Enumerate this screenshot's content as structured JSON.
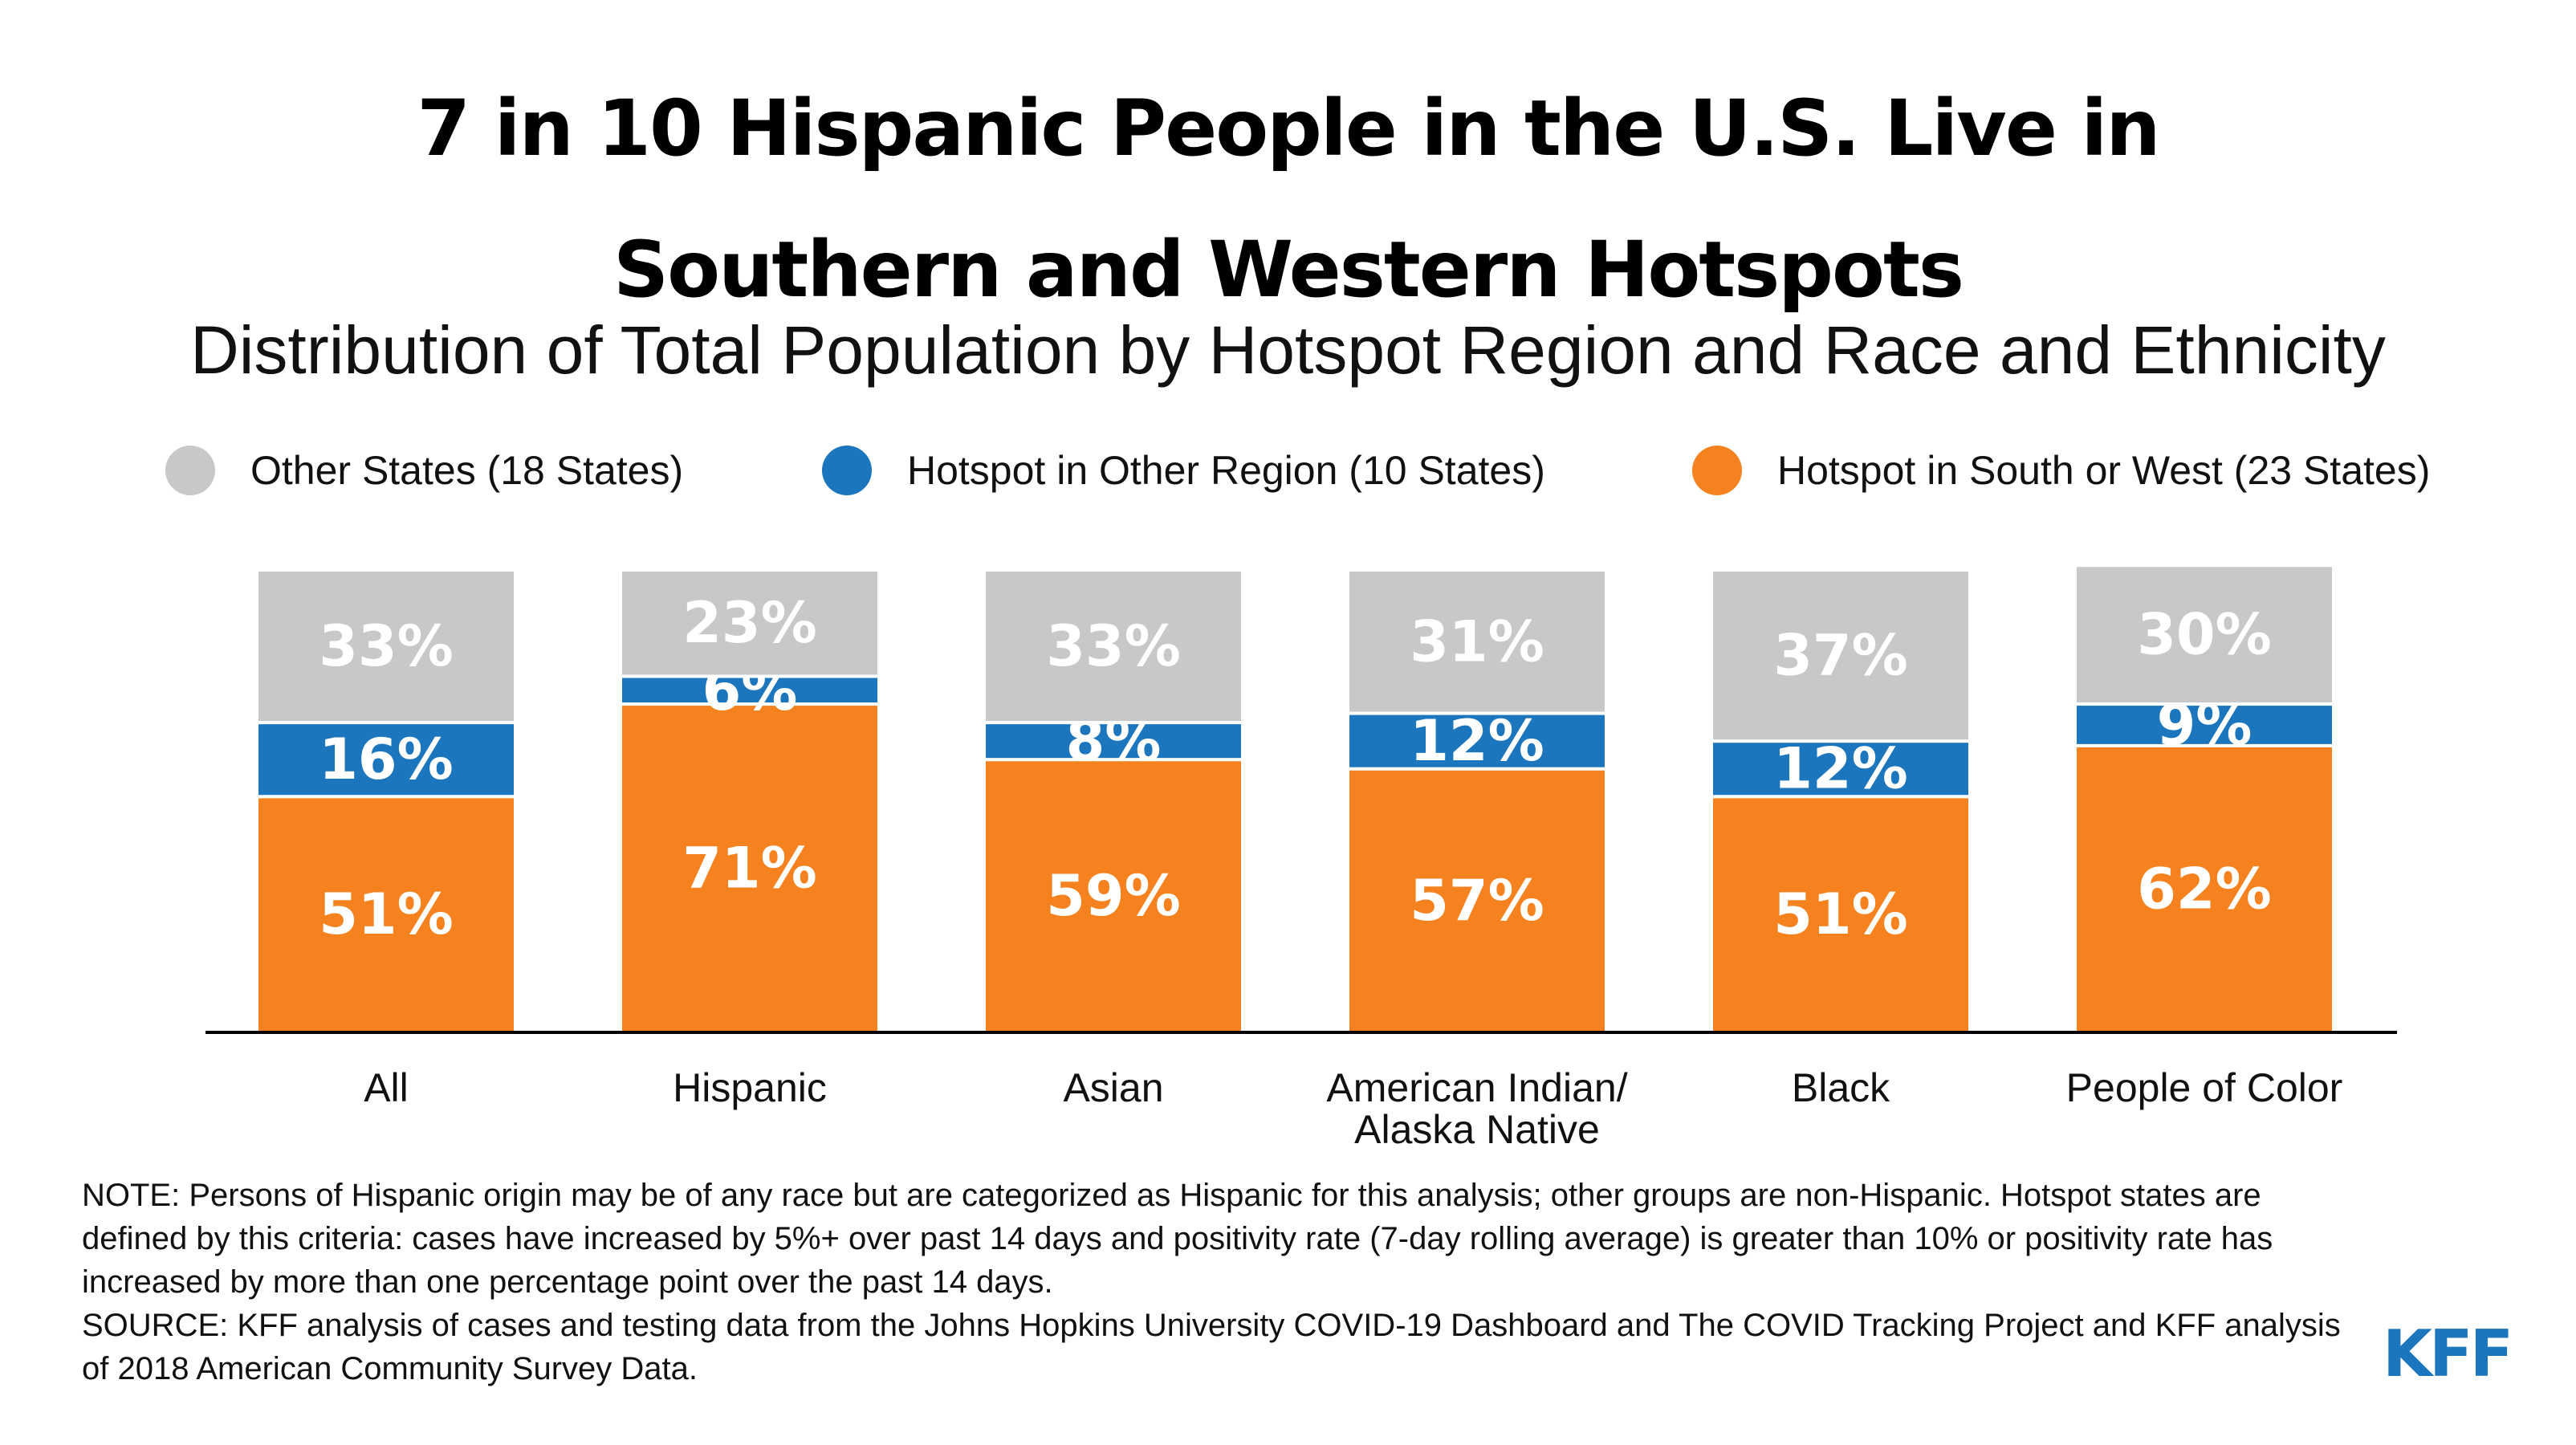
{
  "header": {
    "title_line1": "7 in 10 Hispanic People in the U.S. Live in",
    "title_line2": "Southern and Western Hotspots",
    "subtitle": "Distribution of Total Population by Hotspot Region and Race and Ethnicity"
  },
  "legend": [
    {
      "label": "Other States (18 States)",
      "color": "#c8c8c8"
    },
    {
      "label": "Hotspot in Other Region (10 States)",
      "color": "#1b76be"
    },
    {
      "label": "Hotspot in South or West (23 States)",
      "color": "#f5821f"
    }
  ],
  "chart_data": {
    "type": "bar",
    "stacked": true,
    "categories": [
      "All",
      "Hispanic",
      "Asian",
      "American Indian/ Alaska Native",
      "Black",
      "People of Color"
    ],
    "category_lines": [
      [
        "All"
      ],
      [
        "Hispanic"
      ],
      [
        "Asian"
      ],
      [
        "American Indian/",
        "Alaska Native"
      ],
      [
        "Black"
      ],
      [
        "People of Color"
      ]
    ],
    "series": [
      {
        "name": "Hotspot in South or West (23 States)",
        "color": "#f5821f",
        "values": [
          51,
          71,
          59,
          57,
          51,
          62
        ]
      },
      {
        "name": "Hotspot in Other Region (10 States)",
        "color": "#1b76be",
        "values": [
          16,
          6,
          8,
          12,
          12,
          9
        ]
      },
      {
        "name": "Other States (18 States)",
        "color": "#c8c8c8",
        "values": [
          33,
          23,
          33,
          31,
          37,
          30
        ]
      }
    ],
    "value_suffix": "%",
    "ylim": [
      0,
      100
    ],
    "grid": false,
    "legend_position": "top"
  },
  "footer": {
    "note": "NOTE: Persons of Hispanic origin may be of any race but are categorized as Hispanic for this analysis; other groups are non-Hispanic. Hotspot states are defined by this criteria: cases have increased by 5%+ over past 14 days and positivity rate (7-day rolling average) is greater than 10% or positivity rate has increased by more than one percentage point over the past 14 days.",
    "source": "SOURCE: KFF analysis of cases and testing data from the Johns Hopkins University COVID-19 Dashboard and The COVID Tracking Project and KFF analysis of 2018 American Community Survey Data.",
    "logo_text": "KFF"
  }
}
